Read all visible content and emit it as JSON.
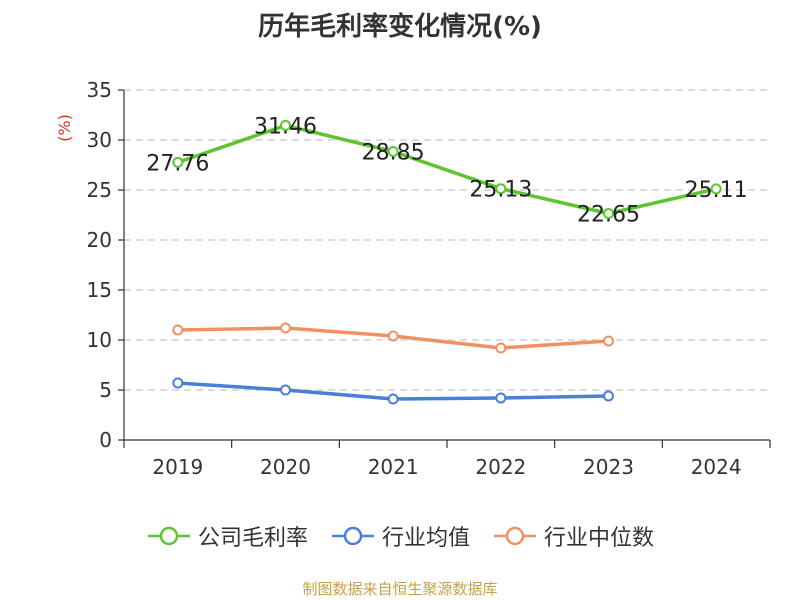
{
  "chart_data": {
    "type": "line",
    "title": "历年毛利率变化情况(%)",
    "ylabel": "(%)",
    "xlabel": "",
    "categories": [
      "2019",
      "2020",
      "2021",
      "2022",
      "2023",
      "2024"
    ],
    "ylim": [
      0,
      35
    ],
    "yticks": [
      0,
      5,
      10,
      15,
      20,
      25,
      30,
      35
    ],
    "grid": true,
    "legend_position": "bottom",
    "series": [
      {
        "name": "公司毛利率",
        "color": "#5cc530",
        "values": [
          27.76,
          31.46,
          28.85,
          25.13,
          22.65,
          25.11
        ],
        "labels": [
          "27.76",
          "31.46",
          "28.85",
          "25.13",
          "22.65",
          "25.11"
        ]
      },
      {
        "name": "行业均值",
        "color": "#4a7fd8",
        "values": [
          5.7,
          5.0,
          4.1,
          4.2,
          4.4,
          null
        ]
      },
      {
        "name": "行业中位数",
        "color": "#f39060",
        "values": [
          11.0,
          11.2,
          10.4,
          9.2,
          9.9,
          null
        ]
      }
    ]
  },
  "source": "制图数据来自恒生聚源数据库"
}
